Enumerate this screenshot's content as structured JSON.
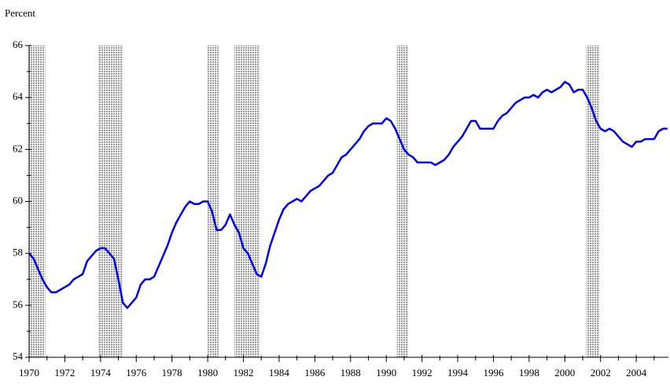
{
  "chart_data": {
    "type": "line",
    "y_label": "Percent",
    "xlim": [
      1970,
      2005.8
    ],
    "ylim": [
      54,
      66
    ],
    "xticks": [
      1970,
      1972,
      1974,
      1976,
      1978,
      1980,
      1982,
      1984,
      1986,
      1988,
      1990,
      1992,
      1994,
      1996,
      1998,
      2000,
      2002,
      2004
    ],
    "xminor_ticks": [
      1971,
      1973,
      1975,
      1977,
      1979,
      1981,
      1983,
      1985,
      1987,
      1989,
      1991,
      1993,
      1995,
      1997,
      1999,
      2001,
      2003,
      2005
    ],
    "yticks": [
      54,
      56,
      58,
      60,
      62,
      64,
      66
    ],
    "yminor_ticks": [
      55,
      57,
      59,
      61,
      63,
      65
    ],
    "shade_color": "#bdbdbd",
    "recessions": [
      {
        "start": 1970,
        "end": 1970.9
      },
      {
        "start": 1973.9,
        "end": 1975.2
      },
      {
        "start": 1980,
        "end": 1980.6
      },
      {
        "start": 1981.5,
        "end": 1982.9
      },
      {
        "start": 1990.6,
        "end": 1991.2
      },
      {
        "start": 2001.2,
        "end": 2001.9
      }
    ],
    "x": [
      1970,
      1970.25,
      1970.5,
      1970.75,
      1971,
      1971.25,
      1971.5,
      1971.75,
      1972,
      1972.25,
      1972.5,
      1972.75,
      1973,
      1973.25,
      1973.5,
      1973.75,
      1974,
      1974.25,
      1974.5,
      1974.75,
      1975,
      1975.25,
      1975.5,
      1975.75,
      1976,
      1976.25,
      1976.5,
      1976.75,
      1977,
      1977.25,
      1977.5,
      1977.75,
      1978,
      1978.25,
      1978.5,
      1978.75,
      1979,
      1979.25,
      1979.5,
      1979.75,
      1980,
      1980.25,
      1980.5,
      1980.75,
      1981,
      1981.25,
      1981.5,
      1981.75,
      1982,
      1982.25,
      1982.5,
      1982.75,
      1983,
      1983.25,
      1983.5,
      1983.75,
      1984,
      1984.25,
      1984.5,
      1984.75,
      1985,
      1985.25,
      1985.5,
      1985.75,
      1986,
      1986.25,
      1986.5,
      1986.75,
      1987,
      1987.25,
      1987.5,
      1987.75,
      1988,
      1988.25,
      1988.5,
      1988.75,
      1989,
      1989.25,
      1989.5,
      1989.75,
      1990,
      1990.25,
      1990.5,
      1990.75,
      1991,
      1991.25,
      1991.5,
      1991.75,
      1992,
      1992.25,
      1992.5,
      1992.75,
      1993,
      1993.25,
      1993.5,
      1993.75,
      1994,
      1994.25,
      1994.5,
      1994.75,
      1995,
      1995.25,
      1995.5,
      1995.75,
      1996,
      1996.25,
      1996.5,
      1996.75,
      1997,
      1997.25,
      1997.5,
      1997.75,
      1998,
      1998.25,
      1998.5,
      1998.75,
      1999,
      1999.25,
      1999.5,
      1999.75,
      2000,
      2000.25,
      2000.5,
      2000.75,
      2001,
      2001.25,
      2001.5,
      2001.75,
      2002,
      2002.25,
      2002.5,
      2002.75,
      2003,
      2003.25,
      2003.5,
      2003.75,
      2004,
      2004.25,
      2004.5,
      2004.75,
      2005,
      2005.25,
      2005.5,
      2005.75
    ],
    "series": [
      {
        "color": "#0000ee",
        "values": [
          58.0,
          57.8,
          57.4,
          57.0,
          56.7,
          56.5,
          56.5,
          56.6,
          56.7,
          56.8,
          57.0,
          57.1,
          57.2,
          57.7,
          57.9,
          58.1,
          58.2,
          58.2,
          58.0,
          57.8,
          57.0,
          56.1,
          55.9,
          56.1,
          56.3,
          56.8,
          57.0,
          57.0,
          57.1,
          57.5,
          57.9,
          58.3,
          58.8,
          59.2,
          59.5,
          59.8,
          60.0,
          59.9,
          59.9,
          60.0,
          60.0,
          59.6,
          58.9,
          58.9,
          59.1,
          59.5,
          59.1,
          58.8,
          58.2,
          58.0,
          57.6,
          57.2,
          57.1,
          57.6,
          58.3,
          58.8,
          59.3,
          59.7,
          59.9,
          60.0,
          60.1,
          60.0,
          60.2,
          60.4,
          60.5,
          60.6,
          60.8,
          61.0,
          61.1,
          61.4,
          61.7,
          61.8,
          62.0,
          62.2,
          62.4,
          62.7,
          62.9,
          63.0,
          63.0,
          63.0,
          63.2,
          63.1,
          62.8,
          62.4,
          62.0,
          61.8,
          61.7,
          61.5,
          61.5,
          61.5,
          61.5,
          61.4,
          61.5,
          61.6,
          61.8,
          62.1,
          62.3,
          62.5,
          62.8,
          63.1,
          63.1,
          62.8,
          62.8,
          62.8,
          62.8,
          63.1,
          63.3,
          63.4,
          63.6,
          63.8,
          63.9,
          64.0,
          64.0,
          64.1,
          64.0,
          64.2,
          64.3,
          64.2,
          64.3,
          64.4,
          64.6,
          64.5,
          64.2,
          64.3,
          64.3,
          64.0,
          63.6,
          63.1,
          62.8,
          62.7,
          62.8,
          62.7,
          62.5,
          62.3,
          62.2,
          62.1,
          62.3,
          62.3,
          62.4,
          62.4,
          62.4,
          62.7,
          62.8,
          62.8
        ]
      }
    ]
  }
}
